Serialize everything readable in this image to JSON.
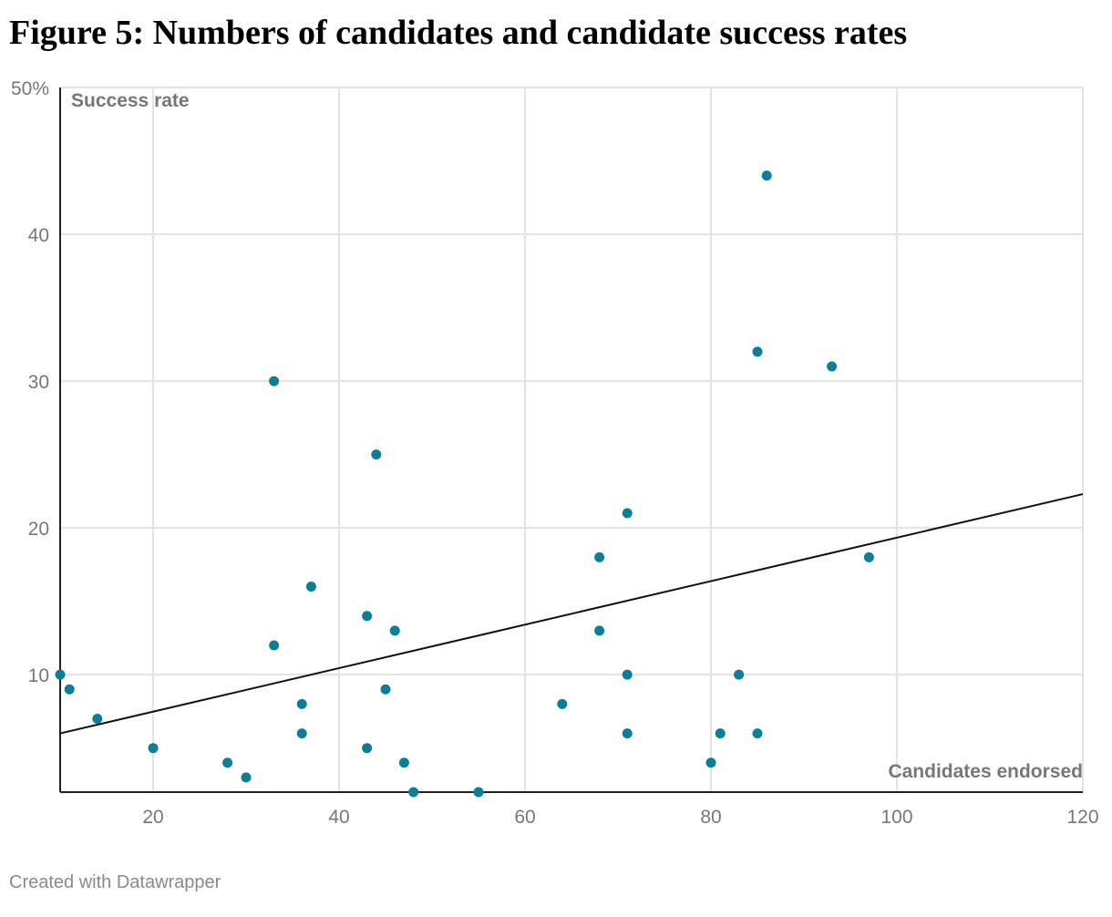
{
  "title": "Figure 5: Numbers of candidates and candidate success rates",
  "credit": "Created with Datawrapper",
  "chart_data": {
    "type": "scatter",
    "ylabel": "Success rate",
    "xlabel": "Candidates endorsed",
    "xlim": [
      10,
      120
    ],
    "ylim": [
      2,
      50
    ],
    "x_ticks": [
      {
        "value": 20,
        "label": "20"
      },
      {
        "value": 40,
        "label": "40"
      },
      {
        "value": 60,
        "label": "60"
      },
      {
        "value": 80,
        "label": "80"
      },
      {
        "value": 100,
        "label": "100"
      },
      {
        "value": 120,
        "label": "120"
      }
    ],
    "y_ticks": [
      {
        "value": 10,
        "label": "10"
      },
      {
        "value": 20,
        "label": "20"
      },
      {
        "value": 30,
        "label": "30"
      },
      {
        "value": 40,
        "label": "40"
      },
      {
        "value": 50,
        "label": "50%"
      }
    ],
    "grid": true,
    "point_color": "#0b7e99",
    "trend_color": "#111111",
    "trendline": {
      "x": [
        10,
        120
      ],
      "y": [
        6.0,
        22.3
      ]
    },
    "points": [
      {
        "x": 10,
        "y": 10
      },
      {
        "x": 11,
        "y": 9
      },
      {
        "x": 14,
        "y": 7
      },
      {
        "x": 20,
        "y": 5
      },
      {
        "x": 28,
        "y": 4
      },
      {
        "x": 30,
        "y": 3
      },
      {
        "x": 33,
        "y": 30
      },
      {
        "x": 33,
        "y": 12
      },
      {
        "x": 36,
        "y": 8
      },
      {
        "x": 36,
        "y": 6
      },
      {
        "x": 37,
        "y": 16
      },
      {
        "x": 43,
        "y": 14
      },
      {
        "x": 43,
        "y": 5
      },
      {
        "x": 44,
        "y": 25
      },
      {
        "x": 45,
        "y": 9
      },
      {
        "x": 46,
        "y": 13
      },
      {
        "x": 47,
        "y": 4
      },
      {
        "x": 48,
        "y": 2
      },
      {
        "x": 55,
        "y": 2
      },
      {
        "x": 64,
        "y": 8
      },
      {
        "x": 68,
        "y": 18
      },
      {
        "x": 68,
        "y": 13
      },
      {
        "x": 71,
        "y": 21
      },
      {
        "x": 71,
        "y": 10
      },
      {
        "x": 71,
        "y": 6
      },
      {
        "x": 80,
        "y": 4
      },
      {
        "x": 81,
        "y": 6
      },
      {
        "x": 83,
        "y": 10
      },
      {
        "x": 85,
        "y": 32
      },
      {
        "x": 85,
        "y": 6
      },
      {
        "x": 86,
        "y": 44
      },
      {
        "x": 93,
        "y": 31
      },
      {
        "x": 97,
        "y": 18
      }
    ]
  }
}
